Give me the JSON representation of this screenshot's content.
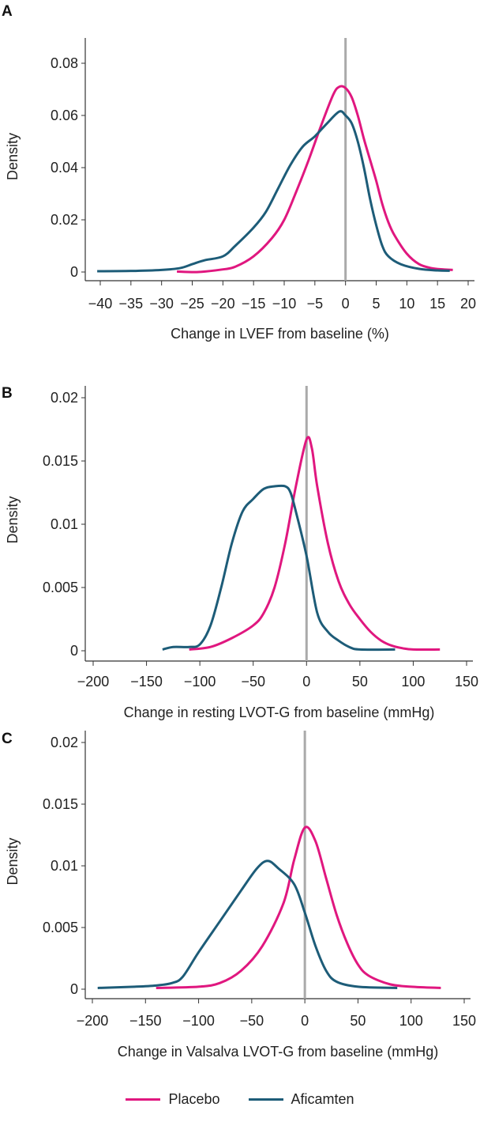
{
  "colors": {
    "placebo": "#e0177f",
    "aficamten": "#1d5c78",
    "zero_line": "#aaaaaa"
  },
  "legend": [
    {
      "name": "Placebo",
      "color": "#e0177f"
    },
    {
      "name": "Aficamten",
      "color": "#1d5c78"
    }
  ],
  "chart_data": [
    {
      "type": "line",
      "panel": "A",
      "ylabel": "Density",
      "xlabel": "Change in LVEF from baseline (%)",
      "xlim": [
        -40,
        20
      ],
      "ylim": [
        0,
        0.08
      ],
      "xticks": [
        -40,
        -35,
        -30,
        -25,
        -20,
        -15,
        -10,
        -5,
        0,
        5,
        10,
        15,
        20
      ],
      "xtick_labels": [
        "−40",
        "−35",
        "−30",
        "−25",
        "−20",
        "−15",
        "−10",
        "−5",
        "0",
        "5",
        "10",
        "15",
        "20"
      ],
      "yticks": [
        0,
        0.02,
        0.04,
        0.06,
        0.08
      ],
      "ytick_labels": [
        "0",
        "0.02",
        "0.04",
        "0.06",
        "0.08"
      ],
      "reference_line_x": 0,
      "series": [
        {
          "name": "Placebo",
          "x": [
            -27.5,
            -24,
            -20,
            -18,
            -15,
            -12,
            -10,
            -8,
            -6,
            -4,
            -2,
            -1,
            0,
            1,
            2,
            3,
            4,
            5,
            6,
            7,
            8,
            10,
            12,
            14,
            16,
            17.5
          ],
          "y": [
            0.0002,
            0,
            0.001,
            0.002,
            0.006,
            0.013,
            0.02,
            0.031,
            0.043,
            0.056,
            0.068,
            0.071,
            0.0705,
            0.067,
            0.06,
            0.051,
            0.043,
            0.035,
            0.026,
            0.019,
            0.014,
            0.007,
            0.003,
            0.0015,
            0.001,
            0.0008
          ]
        },
        {
          "name": "Aficamten",
          "x": [
            -40.5,
            -35,
            -30,
            -27,
            -25,
            -23,
            -20,
            -18,
            -15,
            -13,
            -11,
            -9,
            -7,
            -5,
            -3,
            -1,
            0,
            1,
            2,
            3,
            4,
            5,
            6,
            7,
            9,
            12,
            15,
            17
          ],
          "y": [
            0.0003,
            0.0004,
            0.0008,
            0.0015,
            0.003,
            0.0045,
            0.006,
            0.01,
            0.017,
            0.023,
            0.032,
            0.041,
            0.048,
            0.052,
            0.057,
            0.0615,
            0.06,
            0.057,
            0.05,
            0.04,
            0.028,
            0.018,
            0.01,
            0.006,
            0.003,
            0.0012,
            0.0006,
            0.0005
          ]
        }
      ]
    },
    {
      "type": "line",
      "panel": "B",
      "ylabel": "Density",
      "xlabel": "Change in resting LVOT-G from baseline (mmHg)",
      "xlim": [
        -200,
        150
      ],
      "ylim": [
        0,
        0.02
      ],
      "xticks": [
        -200,
        -150,
        -100,
        -50,
        0,
        50,
        100,
        150
      ],
      "xtick_labels": [
        "−200",
        "−150",
        "−100",
        "−50",
        "0",
        "50",
        "100",
        "150"
      ],
      "yticks": [
        0,
        0.005,
        0.01,
        0.015,
        0.02
      ],
      "ytick_labels": [
        "0",
        "0.005",
        "0.01",
        "0.015",
        "0.02"
      ],
      "reference_line_x": 0,
      "series": [
        {
          "name": "Placebo",
          "x": [
            -110,
            -90,
            -70,
            -50,
            -40,
            -30,
            -20,
            -10,
            0,
            5,
            10,
            20,
            30,
            40,
            50,
            60,
            70,
            80,
            90,
            100,
            125
          ],
          "y": [
            0.0001,
            0.0003,
            0.001,
            0.002,
            0.003,
            0.005,
            0.0085,
            0.013,
            0.0167,
            0.016,
            0.013,
            0.0085,
            0.0055,
            0.0037,
            0.0025,
            0.0015,
            0.0008,
            0.0004,
            0.0002,
            0.0001,
            0.0001
          ]
        },
        {
          "name": "Aficamten",
          "x": [
            -135,
            -125,
            -110,
            -100,
            -90,
            -80,
            -70,
            -60,
            -50,
            -40,
            -30,
            -20,
            -15,
            -10,
            0,
            10,
            20,
            30,
            40,
            50,
            83
          ],
          "y": [
            0.0001,
            0.0003,
            0.0003,
            0.0005,
            0.002,
            0.005,
            0.0085,
            0.011,
            0.012,
            0.0128,
            0.013,
            0.013,
            0.0125,
            0.011,
            0.0075,
            0.003,
            0.0015,
            0.0008,
            0.0003,
            0.0001,
            0.0001
          ]
        }
      ]
    },
    {
      "type": "line",
      "panel": "C",
      "ylabel": "Density",
      "xlabel": "Change in Valsalva LVOT-G from baseline (mmHg)",
      "xlim": [
        -200,
        150
      ],
      "ylim": [
        0,
        0.02
      ],
      "xticks": [
        -200,
        -150,
        -100,
        -50,
        0,
        50,
        100,
        150
      ],
      "xtick_labels": [
        "−200",
        "−150",
        "−100",
        "−50",
        "0",
        "50",
        "100",
        "150"
      ],
      "yticks": [
        0,
        0.005,
        0.01,
        0.015,
        0.02
      ],
      "ytick_labels": [
        "0",
        "0.005",
        "0.01",
        "0.015",
        "0.02"
      ],
      "reference_line_x": 0,
      "series": [
        {
          "name": "Placebo",
          "x": [
            -140,
            -100,
            -80,
            -60,
            -40,
            -20,
            -10,
            0,
            10,
            20,
            30,
            40,
            50,
            60,
            80,
            100,
            128
          ],
          "y": [
            0.0001,
            0.0002,
            0.0005,
            0.0015,
            0.0035,
            0.007,
            0.0105,
            0.0131,
            0.012,
            0.009,
            0.006,
            0.0037,
            0.002,
            0.0011,
            0.0004,
            0.0002,
            0.0001
          ]
        },
        {
          "name": "Aficamten",
          "x": [
            -195,
            -160,
            -140,
            -125,
            -115,
            -100,
            -80,
            -60,
            -45,
            -35,
            -25,
            -10,
            0,
            10,
            20,
            30,
            50,
            87
          ],
          "y": [
            0.0001,
            0.0002,
            0.0003,
            0.0005,
            0.001,
            0.003,
            0.0055,
            0.008,
            0.0098,
            0.0104,
            0.0098,
            0.0085,
            0.0062,
            0.0035,
            0.0015,
            0.0006,
            0.0002,
            0.0001
          ]
        }
      ]
    }
  ]
}
